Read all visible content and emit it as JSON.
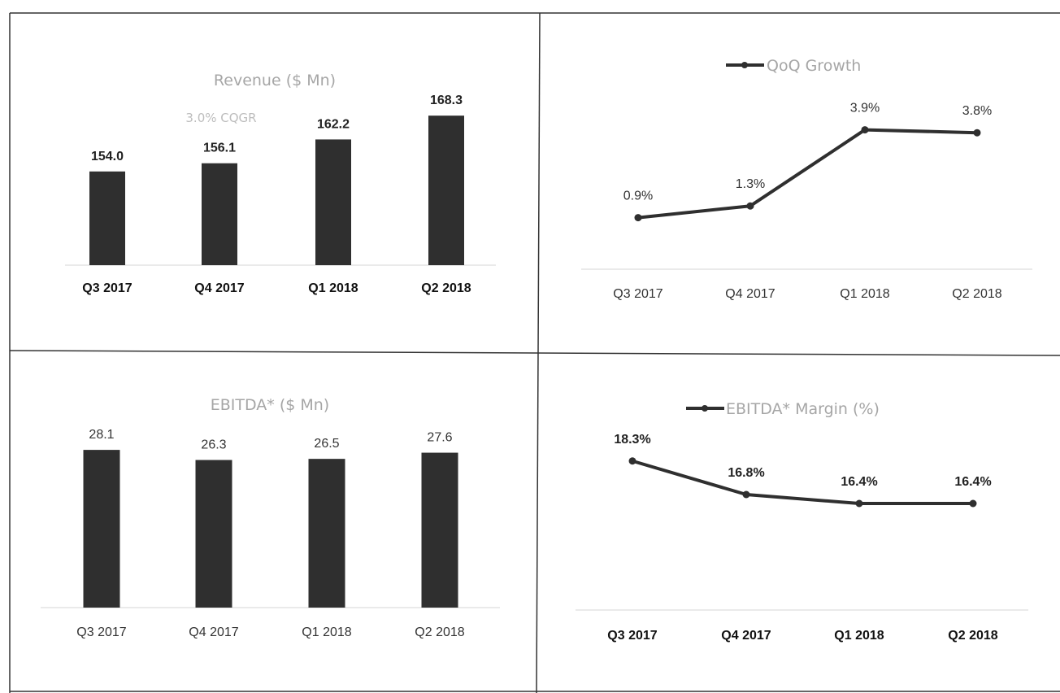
{
  "chart_data": [
    {
      "type": "bar",
      "title": "Revenue ($ Mn)",
      "annotation": "3.0% CQGR",
      "categories": [
        "Q3 2017",
        "Q4 2017",
        "Q1 2018",
        "Q2 2018"
      ],
      "values": [
        154.0,
        156.1,
        162.2,
        168.3
      ],
      "data_labels": [
        "154.0",
        "156.1",
        "162.2",
        "168.3"
      ],
      "ylim": [
        130,
        175
      ],
      "color": "#2f2f2f",
      "grid": false,
      "legend": "none"
    },
    {
      "type": "line",
      "title": "QoQ Growth",
      "series": [
        {
          "name": "QoQ Growth",
          "values": [
            0.9,
            1.3,
            3.9,
            3.8
          ]
        }
      ],
      "categories": [
        "Q3 2017",
        "Q4 2017",
        "Q1 2018",
        "Q2 2018"
      ],
      "data_labels": [
        "0.9%",
        "1.3%",
        "3.9%",
        "3.8%"
      ],
      "ylim": [
        -0.5,
        5
      ],
      "color": "#2f2f2f",
      "grid": false,
      "legend": "top"
    },
    {
      "type": "bar",
      "title": "EBITDA* ($ Mn)",
      "categories": [
        "Q3 2017",
        "Q4 2017",
        "Q1 2018",
        "Q2 2018"
      ],
      "values": [
        28.1,
        26.3,
        26.5,
        27.6
      ],
      "data_labels": [
        "28.1",
        "26.3",
        "26.5",
        "27.6"
      ],
      "ylim": [
        0,
        30
      ],
      "color": "#2f2f2f",
      "grid": false,
      "legend": "none"
    },
    {
      "type": "line",
      "title": "EBITDA* Margin (%)",
      "series": [
        {
          "name": "EBITDA* Margin (%)",
          "values": [
            18.3,
            16.8,
            16.4,
            16.4
          ]
        }
      ],
      "categories": [
        "Q3 2017",
        "Q4 2017",
        "Q1 2018",
        "Q2 2018"
      ],
      "data_labels": [
        "18.3%",
        "16.8%",
        "16.4%",
        "16.4%"
      ],
      "ylim": [
        12,
        20
      ],
      "color": "#2f2f2f",
      "grid": false,
      "legend": "top"
    }
  ]
}
